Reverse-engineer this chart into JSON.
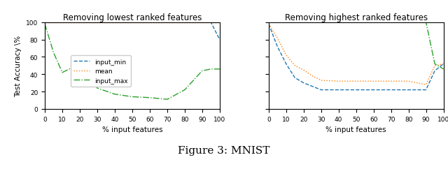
{
  "left_title": "Removing lowest ranked features",
  "right_title": "Removing highest ranked features",
  "xlabel": "% input features",
  "ylabel": "Test Accuracy \\%",
  "caption": "Figure 3: MNIST",
  "x": [
    0,
    5,
    10,
    15,
    20,
    25,
    30,
    40,
    50,
    60,
    70,
    80,
    90,
    95,
    100
  ],
  "left_input_min": [
    100,
    100,
    100,
    100,
    100,
    100,
    100,
    100,
    100,
    100,
    100,
    100,
    100,
    100,
    80
  ],
  "left_mean": [
    100,
    100,
    100,
    100,
    100,
    100,
    100,
    100,
    100,
    100,
    100,
    100,
    100,
    100,
    100
  ],
  "left_input_max": [
    98,
    65,
    42,
    47,
    48,
    36,
    24,
    17,
    14,
    13,
    11,
    22,
    44,
    46,
    46
  ],
  "right_input_min": [
    98,
    72,
    52,
    36,
    30,
    26,
    22,
    22,
    22,
    22,
    22,
    22,
    22,
    44,
    52
  ],
  "right_mean": [
    98,
    82,
    62,
    50,
    45,
    38,
    33,
    32,
    32,
    32,
    32,
    32,
    28,
    50,
    52
  ],
  "right_input_max": [
    100,
    100,
    100,
    100,
    100,
    100,
    100,
    100,
    100,
    100,
    100,
    100,
    100,
    52,
    46
  ],
  "color_input_min": "#1f77b4",
  "color_mean": "#ff7f0e",
  "color_input_max": "#2ca02c",
  "linestyle_input_min": "--",
  "linestyle_mean": ":",
  "linestyle_input_max": "-.",
  "legend_labels": [
    "input_min",
    "mean",
    "input_max"
  ],
  "ylim": [
    0,
    100
  ],
  "xlim": [
    0,
    100
  ]
}
